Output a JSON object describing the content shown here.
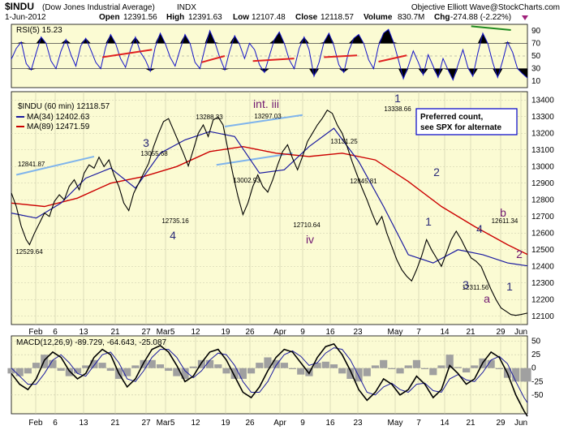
{
  "header": {
    "symbol_title": "$INDU",
    "symbol_name": "(Dow Jones Industrial Average)",
    "exchange": "INDX",
    "date": "1-Jun-2012",
    "open_label": "Open",
    "open": "12391.56",
    "high_label": "High",
    "high": "12391.63",
    "low_label": "Low",
    "low": "12107.48",
    "close_label": "Close",
    "close": "12118.57",
    "volume_label": "Volume",
    "volume": "830.7M",
    "chg_label": "Chg",
    "chg": "-274.88 (-2.22%)",
    "source": "Objective Elliott Wave@StockCharts.com",
    "chg_marker": "down-triangle-icon"
  },
  "colors": {
    "panel_bg": "#fbfbd3",
    "price": "#000000",
    "ma34": "#1a1aa0",
    "ma89": "#cc0000",
    "rsi": "#1414c8",
    "macd_hist": "#a0a0a0",
    "wave_navy": "#2a2a78",
    "wave_purple": "#701870",
    "channel": "#7fb4ec"
  },
  "chart_data": [
    {
      "type": "line",
      "panel": "RSI",
      "title": "RSI(5) 15.23",
      "ylim": [
        0,
        100
      ],
      "yticks": [
        10,
        30,
        50,
        70,
        90
      ],
      "levels": [
        30,
        50,
        70
      ],
      "last_value": 15.23,
      "x": [
        0,
        6,
        12,
        18,
        24,
        30,
        36,
        42,
        48,
        54,
        60,
        66,
        72,
        78,
        84,
        90,
        96,
        102,
        108,
        114,
        120,
        126,
        132,
        138,
        144,
        150,
        156,
        162,
        168,
        174,
        180,
        186,
        192,
        198,
        204,
        210,
        216,
        222,
        228,
        234,
        240,
        246,
        252,
        258,
        264,
        270,
        276,
        282,
        288,
        294,
        300,
        306,
        312,
        318,
        324,
        330,
        336,
        342,
        348,
        354,
        360,
        366,
        372,
        378,
        384,
        390,
        396,
        402,
        408,
        414,
        420,
        426,
        432,
        438,
        444,
        450,
        456,
        462,
        468,
        474,
        480,
        486,
        492,
        498,
        504,
        510,
        516,
        522,
        528,
        534,
        540,
        546,
        552,
        558,
        564,
        570,
        576,
        582,
        588,
        594,
        600,
        606,
        612,
        618,
        624
      ],
      "values": [
        45,
        62,
        72,
        38,
        28,
        55,
        80,
        70,
        42,
        30,
        58,
        76,
        52,
        34,
        66,
        78,
        60,
        40,
        30,
        64,
        84,
        70,
        46,
        32,
        60,
        80,
        56,
        44,
        26,
        64,
        86,
        70,
        48,
        34,
        60,
        84,
        70,
        40,
        30,
        62,
        90,
        72,
        48,
        28,
        58,
        82,
        68,
        46,
        70,
        60,
        36,
        24,
        50,
        76,
        88,
        70,
        44,
        30,
        62,
        80,
        60,
        18,
        40,
        72,
        86,
        66,
        36,
        24,
        58,
        78,
        84,
        70,
        44,
        30,
        66,
        86,
        92,
        72,
        44,
        14,
        34,
        58,
        40,
        20,
        52,
        34,
        16,
        46,
        28,
        12,
        36,
        60,
        32,
        18,
        54,
        86,
        70,
        40,
        16,
        42,
        72,
        56,
        30,
        22,
        15.23
      ],
      "annotations": [
        {
          "type": "trendline",
          "color": "red",
          "from": [
            110,
            48
          ],
          "to": [
            170,
            60
          ]
        },
        {
          "type": "trendline",
          "color": "red",
          "from": [
            230,
            40
          ],
          "to": [
            258,
            50
          ]
        },
        {
          "type": "trendline",
          "color": "red",
          "from": [
            292,
            42
          ],
          "to": [
            342,
            46
          ]
        },
        {
          "type": "trendline",
          "color": "red",
          "from": [
            378,
            48
          ],
          "to": [
            418,
            51
          ]
        },
        {
          "type": "trendline",
          "color": "red",
          "from": [
            444,
            41
          ],
          "to": [
            478,
            51
          ]
        },
        {
          "type": "trendline",
          "color": "green",
          "from": [
            556,
            97
          ],
          "to": [
            604,
            91
          ]
        }
      ]
    },
    {
      "type": "line",
      "panel": "Price",
      "title": "$INDU (60 min) 12118.57",
      "ylim": [
        12050,
        13450
      ],
      "yticks": [
        12100,
        12200,
        12300,
        12400,
        12500,
        12600,
        12700,
        12800,
        12900,
        13000,
        13100,
        13200,
        13300,
        13400
      ],
      "x_labels": [
        "Feb",
        "6",
        "13",
        "21",
        "27",
        "Mar5",
        "12",
        "19",
        "26",
        "Apr",
        "9",
        "16",
        "23",
        "May",
        "7",
        "14",
        "21",
        "29",
        "Jun"
      ],
      "series": [
        {
          "name": "$INDU (60 min) 12118.57",
          "style": "price",
          "x": [
            0,
            6,
            12,
            18,
            22,
            28,
            34,
            40,
            46,
            52,
            58,
            64,
            70,
            76,
            82,
            88,
            94,
            100,
            106,
            112,
            118,
            124,
            130,
            136,
            142,
            148,
            154,
            160,
            166,
            172,
            178,
            184,
            190,
            196,
            202,
            208,
            214,
            220,
            226,
            232,
            238,
            244,
            250,
            256,
            262,
            268,
            274,
            280,
            286,
            292,
            298,
            304,
            310,
            316,
            322,
            328,
            334,
            340,
            346,
            352,
            358,
            364,
            370,
            376,
            382,
            388,
            394,
            400,
            406,
            412,
            418,
            424,
            430,
            436,
            442,
            448,
            454,
            460,
            466,
            472,
            478,
            484,
            490,
            496,
            502,
            508,
            514,
            520,
            526,
            532,
            538,
            544,
            550,
            556,
            562,
            568,
            574,
            580,
            586,
            592,
            598,
            604,
            610,
            616,
            624
          ],
          "values": [
            12841,
            12760,
            12640,
            12560,
            12530,
            12600,
            12660,
            12720,
            12700,
            12790,
            12830,
            12800,
            12880,
            12920,
            12860,
            12960,
            13010,
            12990,
            13056,
            13000,
            13040,
            12950,
            12880,
            12780,
            12735,
            12840,
            12900,
            12960,
            13020,
            13120,
            13200,
            13270,
            13288,
            13220,
            13150,
            13080,
            13003,
            13100,
            13200,
            13250,
            13180,
            13280,
            13297,
            13250,
            13100,
            12950,
            12820,
            12711,
            12780,
            12880,
            12950,
            12880,
            12846,
            12920,
            13010,
            13090,
            13131,
            13050,
            12980,
            13060,
            13150,
            13200,
            13250,
            13290,
            13339,
            13320,
            13250,
            13200,
            13120,
            13030,
            12950,
            12870,
            12800,
            12720,
            12650,
            12700,
            12600,
            12520,
            12440,
            12380,
            12340,
            12312,
            12380,
            12460,
            12560,
            12500,
            12450,
            12400,
            12480,
            12560,
            12611,
            12560,
            12500,
            12450,
            12430,
            12400,
            12330,
            12260,
            12200,
            12150,
            12130,
            12110,
            12105,
            12110,
            12118.57
          ]
        },
        {
          "name": "MA(34) 12402.63",
          "style": "ma34",
          "x": [
            0,
            30,
            60,
            90,
            120,
            150,
            180,
            210,
            240,
            270,
            300,
            330,
            360,
            390,
            420,
            450,
            480,
            510,
            540,
            570,
            600,
            624
          ],
          "values": [
            12720,
            12690,
            12780,
            12930,
            12990,
            12870,
            13080,
            13160,
            13210,
            13180,
            12960,
            12980,
            13120,
            13230,
            13030,
            12760,
            12470,
            12420,
            12500,
            12470,
            12420,
            12402.63
          ]
        },
        {
          "name": "MA(89) 12471.59",
          "style": "ma89",
          "x": [
            0,
            40,
            80,
            120,
            160,
            200,
            240,
            280,
            320,
            360,
            400,
            440,
            480,
            520,
            560,
            600,
            624
          ],
          "values": [
            12780,
            12760,
            12810,
            12900,
            12940,
            13000,
            13090,
            13120,
            13080,
            13060,
            13080,
            13040,
            12910,
            12760,
            12640,
            12530,
            12471.59
          ]
        }
      ],
      "price_labels": [
        "12841.87",
        "12529.64",
        "13055.68",
        "12735.16",
        "13288.33",
        "13002.93",
        "13297.03",
        "12710.64",
        "13131.25",
        "12845.81",
        "13338.66",
        "12311.56",
        "12611.34"
      ],
      "wave_labels": [
        "3",
        "4",
        "int. iii",
        "iv",
        "1",
        "2",
        "1",
        "4",
        "3",
        "a",
        "b",
        "2",
        "1"
      ],
      "note": [
        "Preferred count,",
        "see SPX for alternate"
      ]
    },
    {
      "type": "line",
      "panel": "MACD",
      "title": "MACD(12,26,9) -89.729, -64.643, -25.087",
      "legend": {
        "macd": "-89.729",
        "signal": "-64.643",
        "hist": "-25.087"
      },
      "ylim": [
        -85,
        60
      ],
      "yticks": [
        -50,
        -25,
        0,
        25,
        50
      ],
      "x_labels": [
        "Feb",
        "6",
        "13",
        "21",
        "27",
        "Mar5",
        "12",
        "19",
        "26",
        "Apr",
        "9",
        "16",
        "23",
        "May",
        "7",
        "14",
        "21",
        "29",
        "Jun"
      ],
      "x": [
        0,
        10,
        20,
        30,
        40,
        50,
        60,
        70,
        80,
        90,
        100,
        110,
        120,
        130,
        140,
        150,
        160,
        170,
        180,
        190,
        200,
        210,
        220,
        230,
        240,
        250,
        260,
        270,
        280,
        290,
        300,
        310,
        320,
        330,
        340,
        350,
        360,
        370,
        380,
        390,
        400,
        410,
        420,
        430,
        440,
        450,
        460,
        470,
        480,
        490,
        500,
        510,
        520,
        530,
        540,
        550,
        560,
        570,
        580,
        590,
        600,
        610,
        620,
        624
      ],
      "series": [
        {
          "name": "MACD",
          "values": [
            -10,
            -30,
            -40,
            -20,
            15,
            30,
            20,
            -5,
            -20,
            -10,
            20,
            35,
            25,
            -10,
            -35,
            -20,
            10,
            35,
            42,
            30,
            5,
            -25,
            -15,
            10,
            30,
            35,
            15,
            -15,
            -45,
            -55,
            -35,
            -5,
            20,
            35,
            30,
            10,
            -10,
            20,
            40,
            45,
            25,
            -5,
            -40,
            -60,
            -45,
            -20,
            -30,
            -50,
            -40,
            -15,
            -30,
            -55,
            -40,
            5,
            -10,
            -30,
            -20,
            10,
            30,
            20,
            -10,
            -50,
            -80,
            -89.729
          ]
        },
        {
          "name": "Signal",
          "values": [
            0,
            -15,
            -30,
            -30,
            -10,
            15,
            25,
            10,
            -10,
            -15,
            5,
            25,
            30,
            10,
            -20,
            -25,
            -5,
            20,
            35,
            35,
            20,
            -5,
            -18,
            -5,
            15,
            28,
            25,
            5,
            -25,
            -45,
            -45,
            -25,
            5,
            25,
            32,
            22,
            5,
            10,
            28,
            38,
            35,
            15,
            -15,
            -45,
            -50,
            -35,
            -28,
            -40,
            -45,
            -30,
            -28,
            -42,
            -45,
            -20,
            -12,
            -22,
            -25,
            -8,
            15,
            22,
            8,
            -25,
            -55,
            -64.643
          ]
        },
        {
          "name": "Histogram",
          "values": [
            -10,
            -15,
            -10,
            10,
            25,
            15,
            -5,
            -15,
            -10,
            5,
            15,
            10,
            -5,
            -20,
            -15,
            5,
            15,
            15,
            7,
            -5,
            -15,
            -20,
            3,
            15,
            15,
            7,
            -10,
            -20,
            -20,
            -10,
            10,
            20,
            15,
            10,
            -2,
            -12,
            -15,
            10,
            12,
            7,
            -10,
            -20,
            -25,
            -15,
            5,
            15,
            -2,
            -10,
            5,
            15,
            -2,
            -13,
            5,
            25,
            2,
            -8,
            5,
            18,
            15,
            -2,
            -18,
            -25,
            -25,
            -25.087
          ]
        }
      ]
    }
  ]
}
